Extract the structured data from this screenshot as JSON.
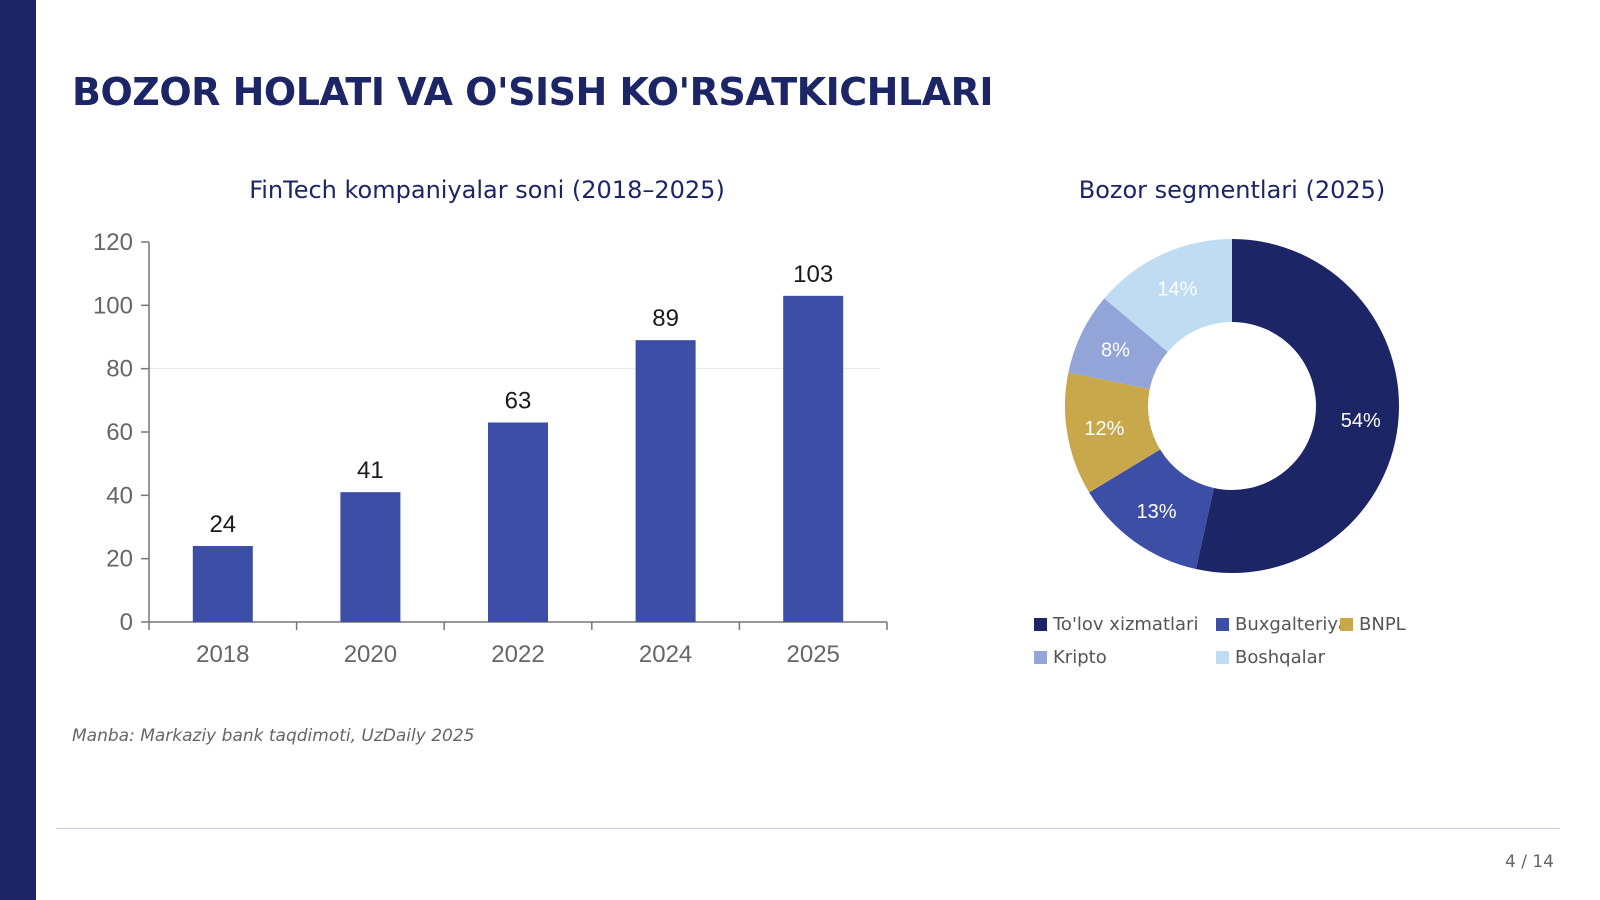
{
  "slide": {
    "title": "BOZOR HOLATI VA O'SISH KO'RSATKICHLARI",
    "source": "Manba: Markaziy bank taqdimoti, UzDaily 2025",
    "page": "4 / 14"
  },
  "colors": {
    "accent": "#1c2566",
    "bar": "#3c4ea6",
    "segments": [
      "#1c2566",
      "#3c4ea6",
      "#c9a84c",
      "#93a5d8",
      "#c0dcf2"
    ]
  },
  "chart_data": [
    {
      "type": "bar",
      "title": "FinTech kompaniyalar soni (2018–2025)",
      "categories": [
        "2018",
        "2020",
        "2022",
        "2024",
        "2025"
      ],
      "values": [
        24,
        41,
        63,
        89,
        103
      ],
      "ylim": [
        0,
        120
      ],
      "yticks": [
        0,
        20,
        40,
        60,
        80,
        100,
        120
      ],
      "grid": "single horizontal gridline at 80",
      "xlabel": "",
      "ylabel": ""
    },
    {
      "type": "pie",
      "title": "Bozor segmentlari (2025)",
      "style": "donut",
      "labels": [
        "To'lov xizmatlari",
        "Buxgalteriya",
        "BNPL",
        "Kripto",
        "Boshqalar"
      ],
      "values": [
        54,
        13,
        12,
        8,
        14
      ],
      "value_labels": [
        "54%",
        "13%",
        "12%",
        "8%",
        "14%"
      ],
      "legend": "bottom"
    }
  ]
}
